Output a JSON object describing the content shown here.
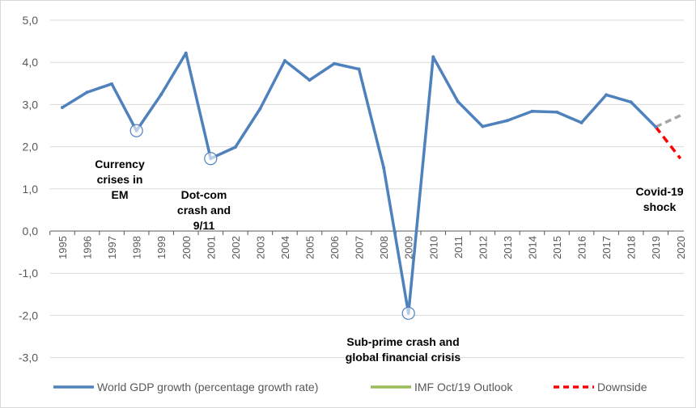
{
  "chart_data": {
    "type": "line",
    "title": "",
    "xlabel": "",
    "ylabel": "",
    "ylim": [
      -3,
      5
    ],
    "yticks": [
      "5,0",
      "4,0",
      "3,0",
      "2,0",
      "1,0",
      "0,0",
      "-1,0",
      "-2,0",
      "-3,0"
    ],
    "ytick_values": [
      5,
      4,
      3,
      2,
      1,
      0,
      -1,
      -2,
      -3
    ],
    "x": [
      "1995",
      "1996",
      "1997",
      "1998",
      "1999",
      "2000",
      "2001",
      "2002",
      "2003",
      "2004",
      "2005",
      "2006",
      "2007",
      "2008",
      "2009",
      "2010",
      "2011",
      "2012",
      "2013",
      "2014",
      "2015",
      "2016",
      "2017",
      "2018",
      "2019",
      "2020"
    ],
    "grid": "horizontal",
    "legend_position": "bottom",
    "colors": {
      "gdp": "#4f81bd",
      "imf": "#9bbb59",
      "imf_projection": "#a6a6a6",
      "downside": "#ff0000",
      "marker": "#4f81bd",
      "grid": "#d9d9d9",
      "axis": "#595959"
    },
    "series": [
      {
        "name": "World GDP growth (percentage growth rate)",
        "x": [
          "1995",
          "1996",
          "1997",
          "1998",
          "1999",
          "2000",
          "2001",
          "2002",
          "2003",
          "2004",
          "2005",
          "2006",
          "2007",
          "2008",
          "2009",
          "2010",
          "2011",
          "2012",
          "2013",
          "2014",
          "2015",
          "2016",
          "2017",
          "2018",
          "2019"
        ],
        "values": [
          2.93,
          3.29,
          3.49,
          2.38,
          3.24,
          4.22,
          1.72,
          1.99,
          2.9,
          4.04,
          3.58,
          3.97,
          3.84,
          1.5,
          -1.95,
          4.13,
          3.07,
          2.48,
          2.62,
          2.84,
          2.82,
          2.57,
          3.23,
          3.06,
          2.47
        ]
      },
      {
        "name": "IMF Oct/19 Outlook",
        "x": [
          "2019",
          "2020"
        ],
        "values": [
          2.47,
          2.74
        ]
      },
      {
        "name": "Downside",
        "x": [
          "2019",
          "2020"
        ],
        "values": [
          2.47,
          1.72
        ]
      }
    ],
    "highlighted_points": [
      {
        "x": "1998",
        "value": 2.38
      },
      {
        "x": "2001",
        "value": 1.72
      },
      {
        "x": "2009",
        "value": -1.95
      }
    ],
    "annotations": [
      {
        "lines": [
          "Currency",
          "crises in",
          "EM"
        ]
      },
      {
        "lines": [
          "Dot-com",
          "crash and",
          "9/11"
        ]
      },
      {
        "lines": [
          "Sub-prime  crash and",
          "global financial crisis"
        ]
      },
      {
        "lines": [
          "Covid-19",
          "shock"
        ]
      }
    ]
  }
}
